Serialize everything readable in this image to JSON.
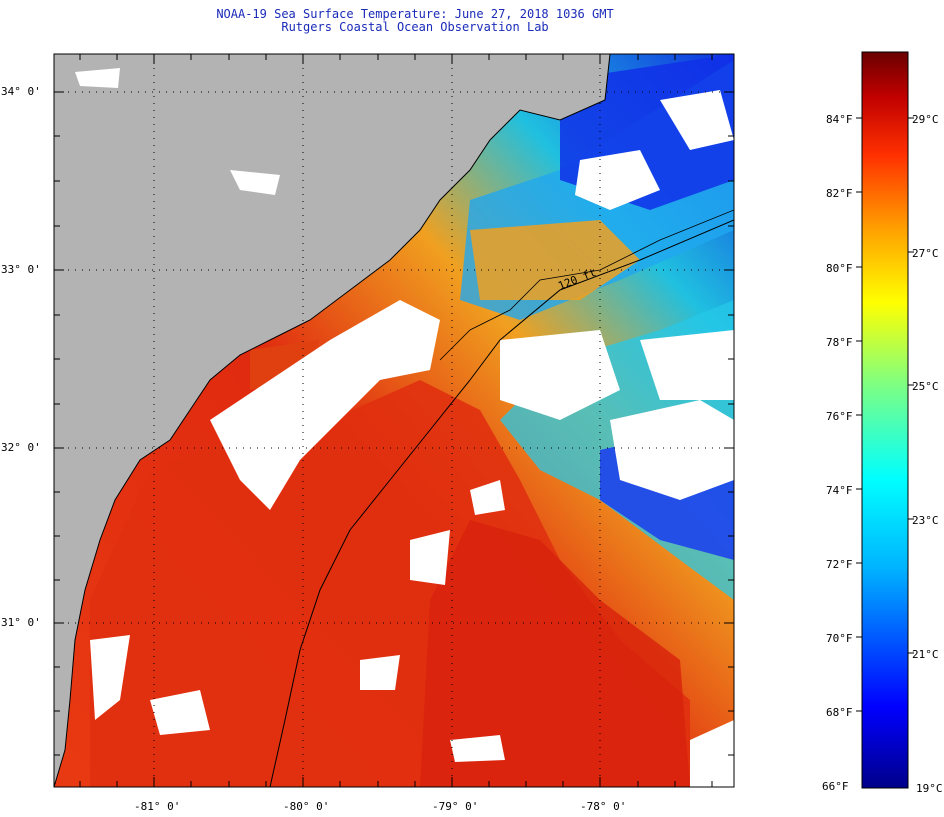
{
  "title": {
    "line1": "NOAA-19 Sea Surface Temperature:  June 27, 2018 1036 GMT",
    "line2": "Rutgers Coastal Ocean Observation Lab"
  },
  "map": {
    "lon_labels": [
      "-81° 0'",
      "-80° 0'",
      "-79° 0'",
      "-78° 0'"
    ],
    "lat_labels": [
      "34° 0'",
      "33° 0'",
      "32° 0'",
      "31° 0'"
    ],
    "contour_label": "120 ft",
    "colors": {
      "land": "#b3b3b3",
      "cloud": "#ffffff",
      "grid": "#000000"
    }
  },
  "colorbar": {
    "fahrenheit_labels": [
      "84°F",
      "82°F",
      "80°F",
      "78°F",
      "76°F",
      "74°F",
      "72°F",
      "70°F",
      "68°F",
      "66°F"
    ],
    "celsius_labels": [
      "29°C",
      "27°C",
      "25°C",
      "23°C",
      "21°C",
      "19°C"
    ],
    "gradient": [
      "#00008a",
      "#0000ff",
      "#00b4ff",
      "#00ffff",
      "#80ff80",
      "#ffff00",
      "#ffa000",
      "#ff3000",
      "#c00000",
      "#6a0000"
    ]
  }
}
